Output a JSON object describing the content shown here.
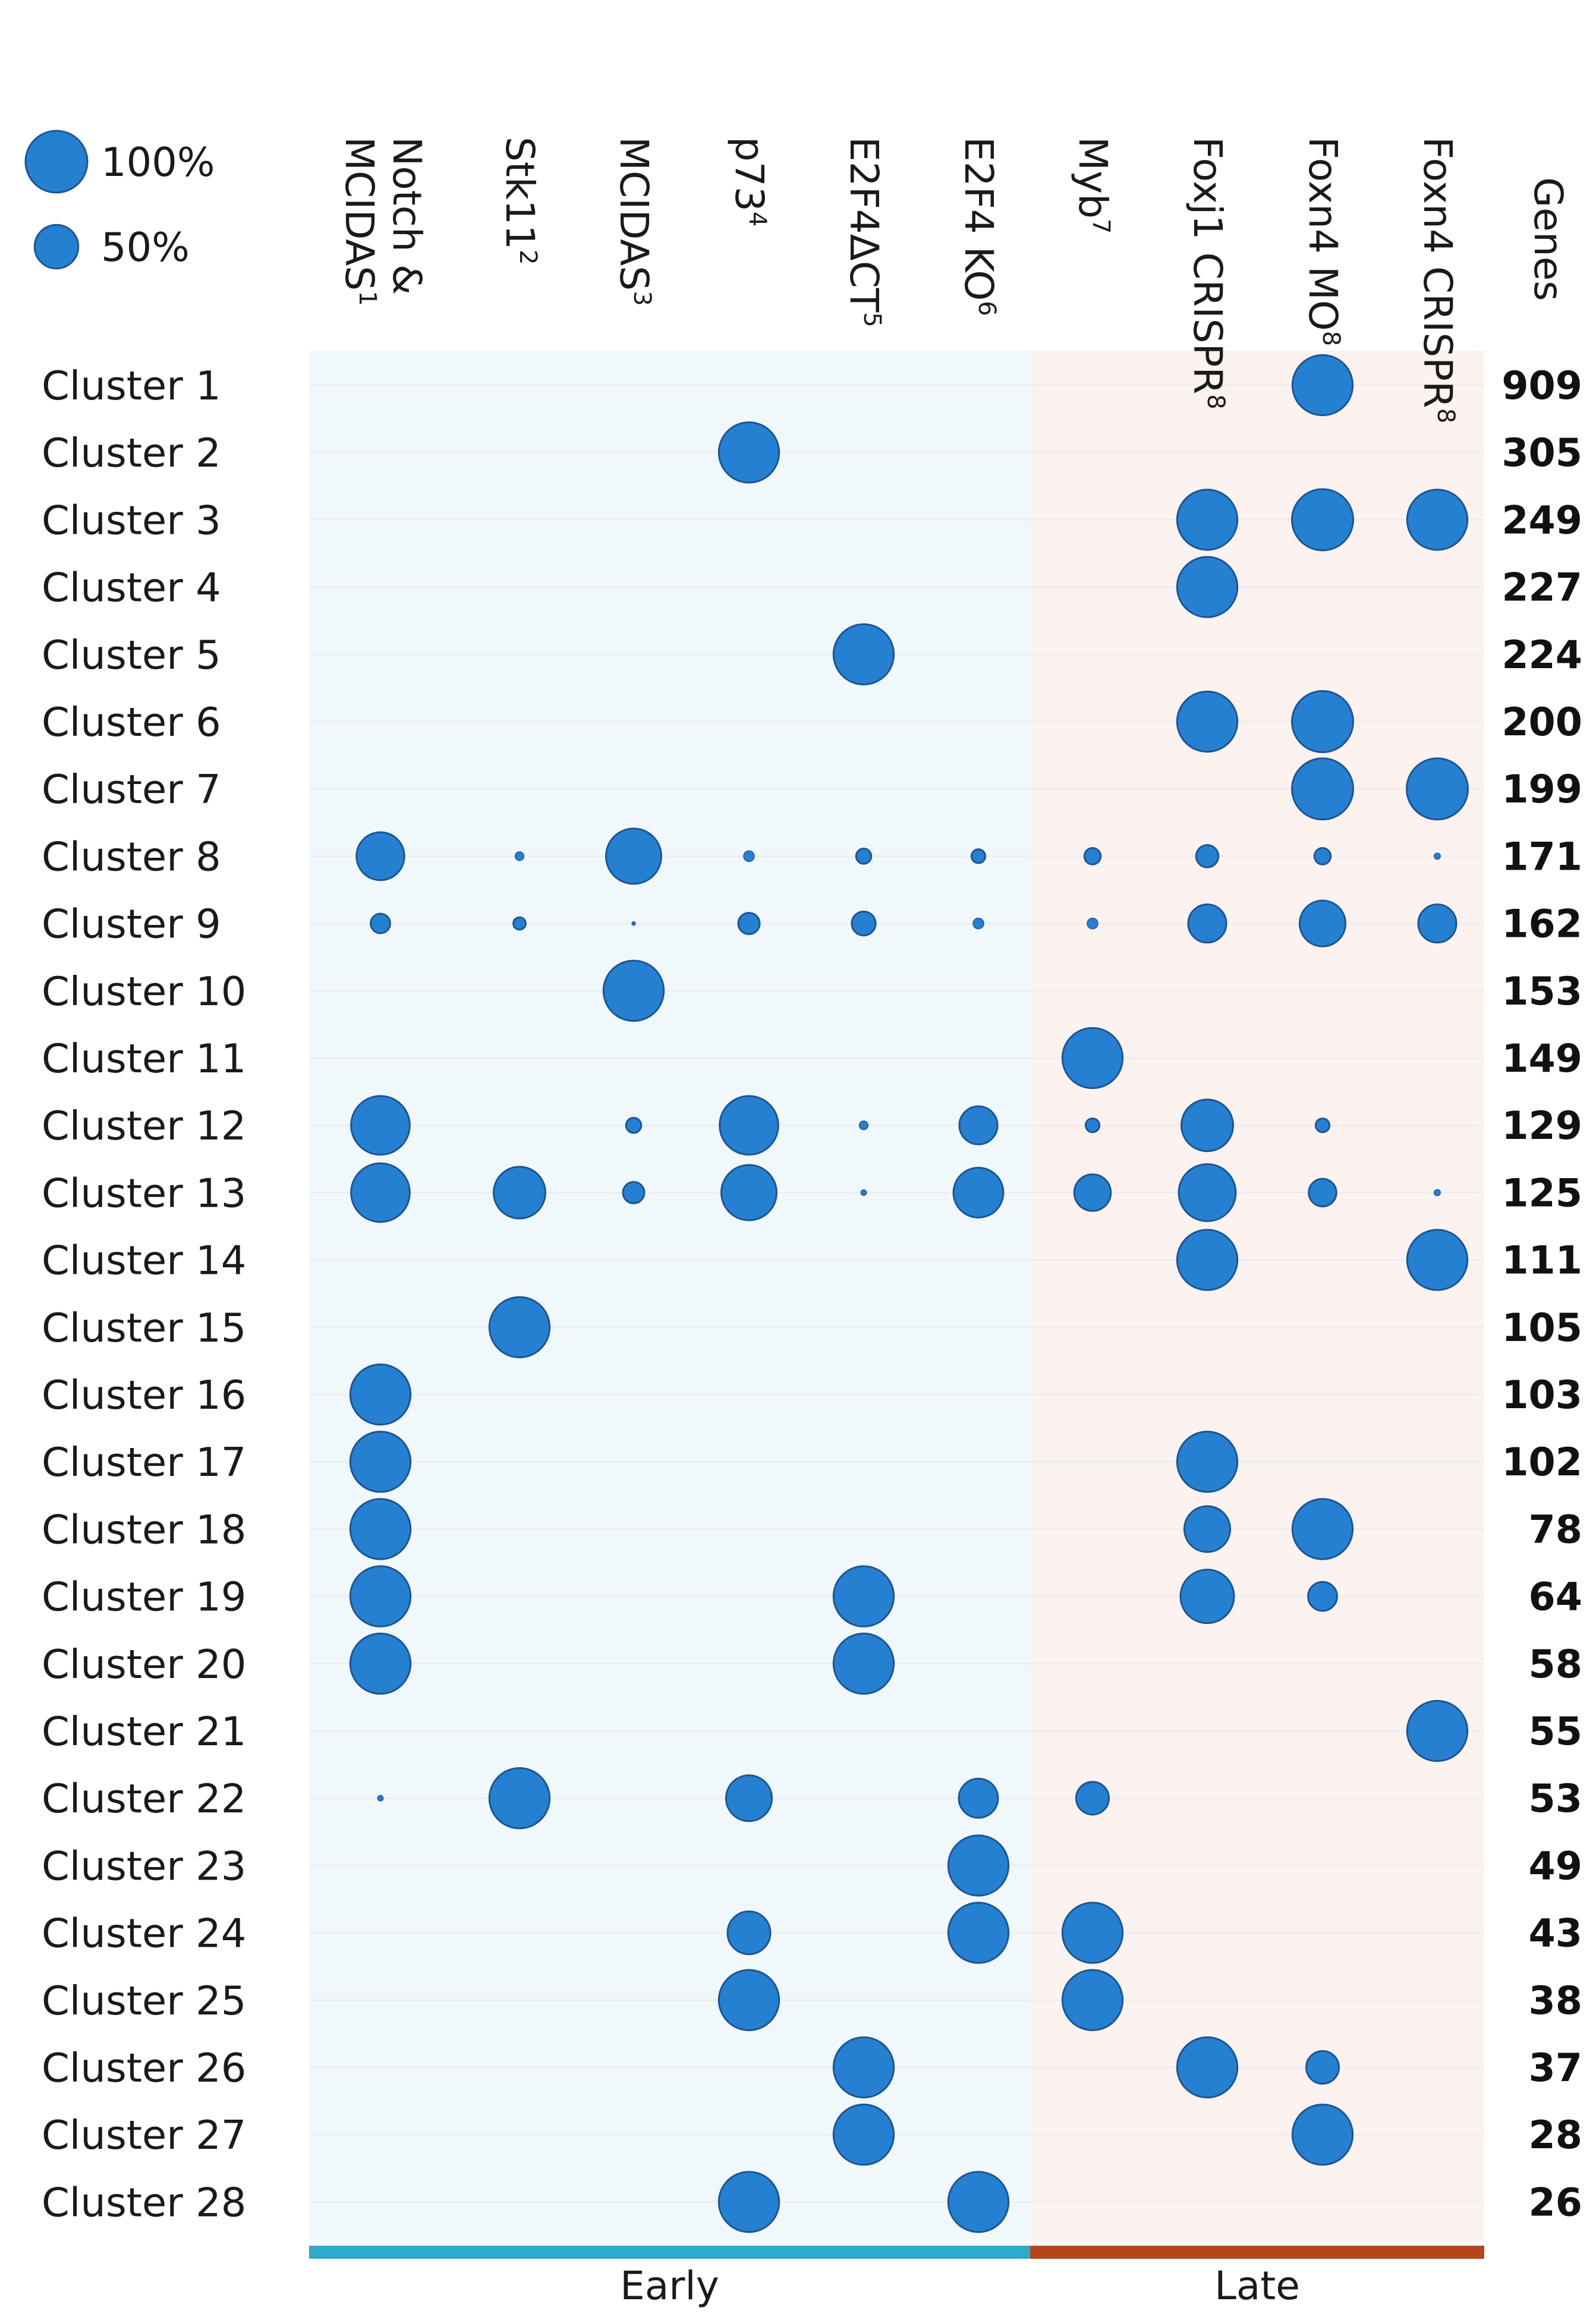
{
  "chart_data": {
    "type": "bubble-matrix",
    "legend": {
      "items": [
        {
          "label": "100%",
          "value": 100
        },
        {
          "label": "50%",
          "value": 50
        }
      ]
    },
    "columns": [
      {
        "line1": "Notch &",
        "line2": "MCIDAS",
        "sup": "1",
        "phase": "Early"
      },
      {
        "line1": "Stk11",
        "line2": "",
        "sup": "2",
        "phase": "Early"
      },
      {
        "line1": "MCIDAS",
        "line2": "",
        "sup": "3",
        "phase": "Early"
      },
      {
        "line1": "p73",
        "line2": "",
        "sup": "4",
        "phase": "Early"
      },
      {
        "line1": "E2F4ΔCT",
        "line2": "",
        "sup": "5",
        "phase": "Early"
      },
      {
        "line1": "E2F4 KO",
        "line2": "",
        "sup": "6",
        "phase": "Early"
      },
      {
        "line1": "Myb",
        "line2": "",
        "sup": "7",
        "phase": "Late"
      },
      {
        "line1": "Foxj1 CRISPR",
        "line2": "",
        "sup": "8",
        "phase": "Late"
      },
      {
        "line1": "Foxn4 MO",
        "line2": "",
        "sup": "8",
        "phase": "Late"
      },
      {
        "line1": "Foxn4 CRISPR",
        "line2": "",
        "sup": "8",
        "phase": "Late"
      }
    ],
    "genes_header": "Genes",
    "phases": [
      {
        "label": "Early",
        "color": "#2fa9cc",
        "bg": "#f1f8fb"
      },
      {
        "label": "Late",
        "color": "#b5461b",
        "bg": "#fcf2ef"
      }
    ],
    "bubble_color": "#2680d1",
    "bubble_stroke": "#1c5592",
    "rows": [
      {
        "label": "Cluster 1",
        "genes": "909",
        "values": [
          0,
          0,
          0,
          0,
          0,
          0,
          0,
          0,
          95,
          0
        ]
      },
      {
        "label": "Cluster 2",
        "genes": "305",
        "values": [
          0,
          0,
          0,
          95,
          0,
          0,
          0,
          0,
          0,
          0
        ]
      },
      {
        "label": "Cluster 3",
        "genes": "249",
        "values": [
          0,
          0,
          0,
          0,
          0,
          0,
          0,
          95,
          98,
          95
        ]
      },
      {
        "label": "Cluster 4",
        "genes": "227",
        "values": [
          0,
          0,
          0,
          0,
          0,
          0,
          0,
          95,
          0,
          0
        ]
      },
      {
        "label": "Cluster 5",
        "genes": "224",
        "values": [
          0,
          0,
          0,
          0,
          95,
          0,
          0,
          0,
          0,
          0
        ]
      },
      {
        "label": "Cluster 6",
        "genes": "200",
        "values": [
          0,
          0,
          0,
          0,
          0,
          0,
          0,
          95,
          98,
          0
        ]
      },
      {
        "label": "Cluster 7",
        "genes": "199",
        "values": [
          0,
          0,
          0,
          0,
          0,
          0,
          0,
          0,
          98,
          98
        ]
      },
      {
        "label": "Cluster 8",
        "genes": "171",
        "values": [
          60,
          2,
          80,
          3,
          6,
          5,
          7,
          13,
          7,
          1
        ]
      },
      {
        "label": "Cluster 9",
        "genes": "162",
        "values": [
          10,
          4,
          0.3,
          12,
          15,
          3,
          3,
          38,
          55,
          38
        ]
      },
      {
        "label": "Cluster 10",
        "genes": "153",
        "values": [
          0,
          0,
          95,
          0,
          0,
          0,
          0,
          0,
          0,
          0
        ]
      },
      {
        "label": "Cluster 11",
        "genes": "149",
        "values": [
          0,
          0,
          0,
          0,
          0,
          0,
          95,
          0,
          0,
          0
        ]
      },
      {
        "label": "Cluster 12",
        "genes": "129",
        "values": [
          90,
          0,
          6,
          90,
          2,
          38,
          5,
          70,
          5,
          0
        ]
      },
      {
        "label": "Cluster 13",
        "genes": "125",
        "values": [
          90,
          70,
          12,
          80,
          0.8,
          65,
          35,
          85,
          20,
          1
        ]
      },
      {
        "label": "Cluster 14",
        "genes": "111",
        "values": [
          0,
          0,
          0,
          0,
          0,
          0,
          0,
          95,
          0,
          95
        ]
      },
      {
        "label": "Cluster 15",
        "genes": "105",
        "values": [
          0,
          95,
          0,
          0,
          0,
          0,
          0,
          0,
          0,
          0
        ]
      },
      {
        "label": "Cluster 16",
        "genes": "103",
        "values": [
          95,
          0,
          0,
          0,
          0,
          0,
          0,
          0,
          0,
          0
        ]
      },
      {
        "label": "Cluster 17",
        "genes": "102",
        "values": [
          95,
          0,
          0,
          0,
          0,
          0,
          0,
          95,
          0,
          0
        ]
      },
      {
        "label": "Cluster 18",
        "genes": "78",
        "values": [
          95,
          0,
          0,
          0,
          0,
          0,
          0,
          55,
          95,
          0
        ]
      },
      {
        "label": "Cluster 19",
        "genes": "64",
        "values": [
          95,
          0,
          0,
          0,
          95,
          0,
          0,
          75,
          22,
          0
        ]
      },
      {
        "label": "Cluster 20",
        "genes": "58",
        "values": [
          95,
          0,
          0,
          0,
          95,
          0,
          0,
          0,
          0,
          0
        ]
      },
      {
        "label": "Cluster 21",
        "genes": "55",
        "values": [
          0,
          0,
          0,
          0,
          0,
          0,
          0,
          0,
          0,
          95
        ]
      },
      {
        "label": "Cluster 22",
        "genes": "53",
        "values": [
          0.8,
          95,
          0,
          55,
          0,
          40,
          28,
          0,
          0,
          0
        ]
      },
      {
        "label": "Cluster 23",
        "genes": "49",
        "values": [
          0,
          0,
          0,
          0,
          0,
          95,
          0,
          0,
          0,
          0
        ]
      },
      {
        "label": "Cluster 24",
        "genes": "43",
        "values": [
          0,
          0,
          0,
          48,
          0,
          95,
          95,
          0,
          0,
          0
        ]
      },
      {
        "label": "Cluster 25",
        "genes": "38",
        "values": [
          0,
          0,
          0,
          95,
          0,
          0,
          95,
          0,
          0,
          0
        ]
      },
      {
        "label": "Cluster 26",
        "genes": "37",
        "values": [
          0,
          0,
          0,
          0,
          95,
          0,
          0,
          95,
          28,
          0
        ]
      },
      {
        "label": "Cluster 27",
        "genes": "28",
        "values": [
          0,
          0,
          0,
          0,
          95,
          0,
          0,
          0,
          95,
          0
        ]
      },
      {
        "label": "Cluster 28",
        "genes": "26",
        "values": [
          0,
          0,
          0,
          95,
          0,
          95,
          0,
          0,
          0,
          0
        ]
      }
    ]
  }
}
